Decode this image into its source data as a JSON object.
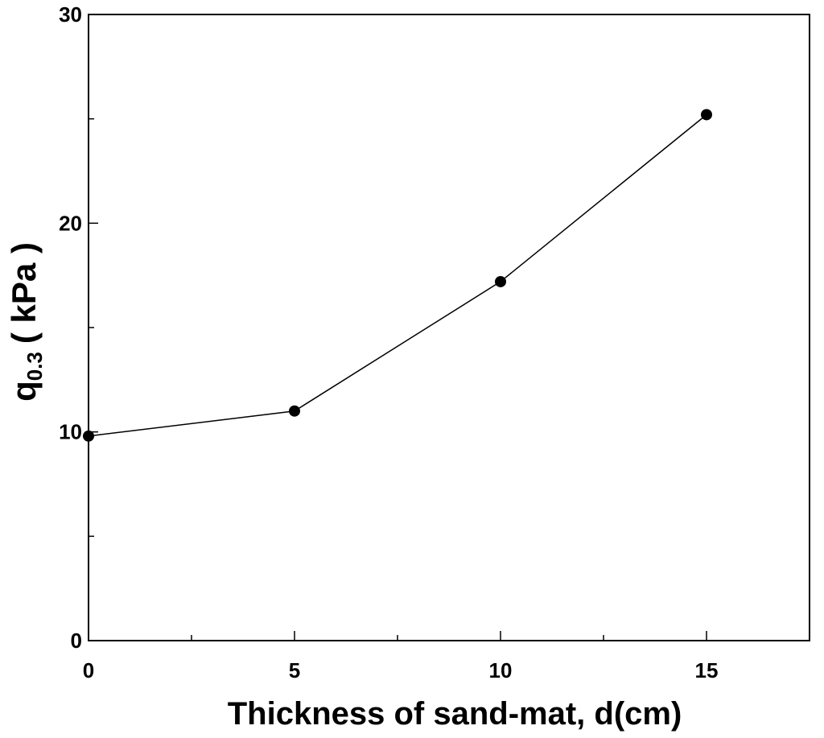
{
  "chart_data": {
    "type": "line",
    "title": "",
    "xlabel": "Thickness of sand-mat, d(cm)",
    "ylabel": {
      "main": "q",
      "subscript": "0.3",
      "unit": "( kPa )"
    },
    "xlim": [
      0,
      17.5
    ],
    "ylim": [
      0,
      30
    ],
    "x_major_ticks": [
      0,
      5,
      10,
      15
    ],
    "x_minor_ticks": [
      2.5,
      7.5,
      12.5
    ],
    "y_major_ticks": [
      0,
      10,
      20,
      30
    ],
    "y_minor_ticks": [
      5,
      15,
      25
    ],
    "x_tick_labels": [
      "0",
      "5",
      "10",
      "15"
    ],
    "y_tick_labels": [
      "0",
      "10",
      "20",
      "30"
    ],
    "grid": false,
    "legend": "none",
    "series": [
      {
        "x": [
          0,
          5,
          10,
          15
        ],
        "values": [
          9.8,
          11.0,
          17.2,
          25.2
        ],
        "color": "#000000",
        "marker": "filled-circle"
      }
    ]
  }
}
